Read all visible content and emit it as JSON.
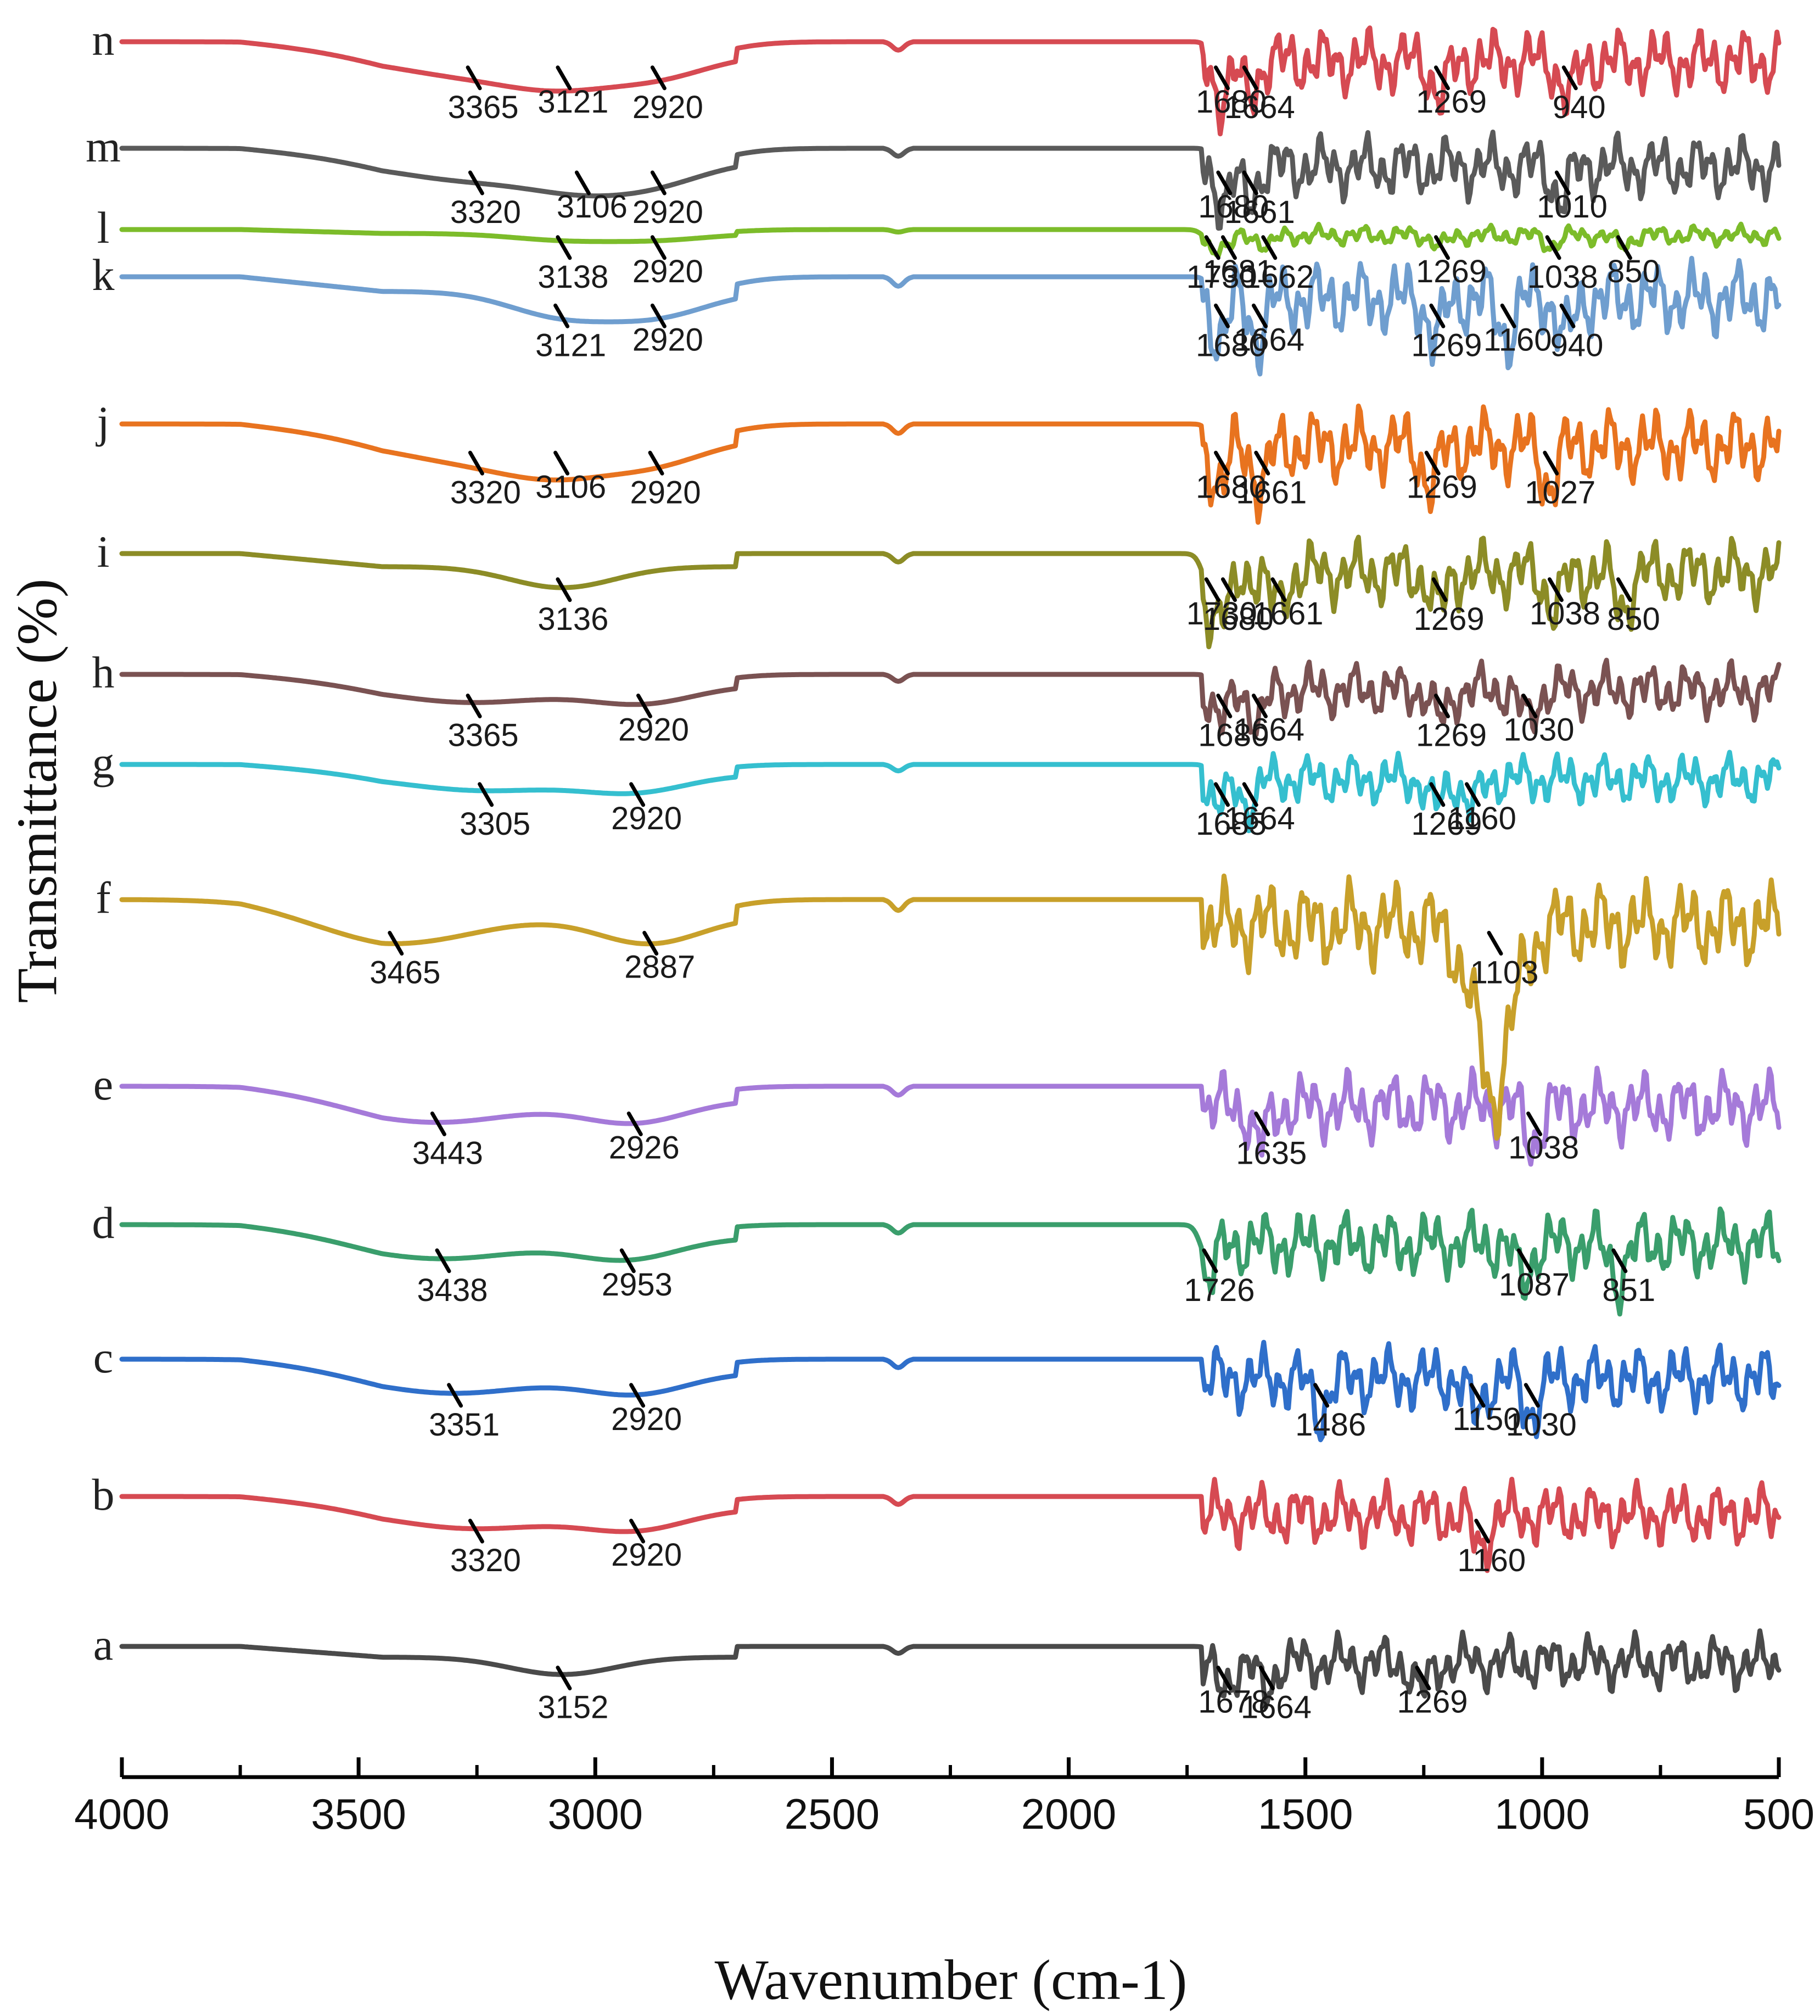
{
  "chart_data": {
    "type": "line",
    "title": "",
    "xlabel": "Wavenumber (cm-1)",
    "ylabel": "Transmittance (%)",
    "xlim": [
      4000,
      500
    ],
    "x_reversed": true,
    "x_ticks": [
      4000,
      3500,
      3000,
      2500,
      2000,
      1500,
      1000,
      500
    ],
    "y_ticks": [],
    "grid": false,
    "legend": "none",
    "series": [
      {
        "name": "a",
        "color": "#4a4a4a",
        "peaks": [
          {
            "label": "3152",
            "x": 3070
          },
          {
            "label": "1678",
            "x": 1675
          },
          {
            "label": "1664",
            "x": 1585
          },
          {
            "label": "1269",
            "x": 1255
          }
        ]
      },
      {
        "name": "b",
        "color": "#d64a52",
        "peaks": [
          {
            "label": "3320",
            "x": 3255
          },
          {
            "label": "2920",
            "x": 2915
          },
          {
            "label": "1160",
            "x": 1130
          }
        ]
      },
      {
        "name": "c",
        "color": "#2f6fca",
        "peaks": [
          {
            "label": "3351",
            "x": 3300
          },
          {
            "label": "2920",
            "x": 2915
          },
          {
            "label": "1486",
            "x": 1470
          },
          {
            "label": "1150",
            "x": 1140
          },
          {
            "label": "1030",
            "x": 1025
          }
        ]
      },
      {
        "name": "d",
        "color": "#3a9e6c",
        "peaks": [
          {
            "label": "3438",
            "x": 3325
          },
          {
            "label": "2953",
            "x": 2935
          },
          {
            "label": "1726",
            "x": 1705
          },
          {
            "label": "1087",
            "x": 1040
          },
          {
            "label": "851",
            "x": 840
          }
        ]
      },
      {
        "name": "e",
        "color": "#a57ad9",
        "peaks": [
          {
            "label": "3443",
            "x": 3335
          },
          {
            "label": "2926",
            "x": 2920
          },
          {
            "label": "1635",
            "x": 1595
          },
          {
            "label": "1038",
            "x": 1020
          }
        ]
      },
      {
        "name": "f",
        "color": "#c8a02a",
        "peaks": [
          {
            "label": "3465",
            "x": 3425
          },
          {
            "label": "2887",
            "x": 2887
          },
          {
            "label": "1103",
            "x": 1103
          }
        ]
      },
      {
        "name": "g",
        "color": "#35bfcf",
        "peaks": [
          {
            "label": "3305",
            "x": 3235
          },
          {
            "label": "2920",
            "x": 2915
          },
          {
            "label": "1685",
            "x": 1680
          },
          {
            "label": "1664",
            "x": 1620
          },
          {
            "label": "1269",
            "x": 1225
          },
          {
            "label": "1160",
            "x": 1150
          }
        ]
      },
      {
        "name": "h",
        "color": "#7a5252",
        "peaks": [
          {
            "label": "3365",
            "x": 3260
          },
          {
            "label": "2920",
            "x": 2900
          },
          {
            "label": "1680",
            "x": 1675
          },
          {
            "label": "1664",
            "x": 1600
          },
          {
            "label": "1269",
            "x": 1215
          },
          {
            "label": "1030",
            "x": 1030
          }
        ]
      },
      {
        "name": "i",
        "color": "#8c8c26",
        "peaks": [
          {
            "label": "3136",
            "x": 3070
          },
          {
            "label": "1730",
            "x": 1700
          },
          {
            "label": "1680",
            "x": 1665
          },
          {
            "label": "1661",
            "x": 1560
          },
          {
            "label": "1269",
            "x": 1220
          },
          {
            "label": "1038",
            "x": 975
          },
          {
            "label": "850",
            "x": 830
          }
        ]
      },
      {
        "name": "j",
        "color": "#e8731f",
        "peaks": [
          {
            "label": "3320",
            "x": 3255
          },
          {
            "label": "3106",
            "x": 3075
          },
          {
            "label": "2920",
            "x": 2875
          },
          {
            "label": "1680",
            "x": 1680
          },
          {
            "label": "1661",
            "x": 1595
          },
          {
            "label": "1269",
            "x": 1235
          },
          {
            "label": "1027",
            "x": 985
          }
        ]
      },
      {
        "name": "k",
        "color": "#6f9ecf",
        "peaks": [
          {
            "label": "3121",
            "x": 3075
          },
          {
            "label": "2920",
            "x": 2870
          },
          {
            "label": "1680",
            "x": 1680
          },
          {
            "label": "1664",
            "x": 1600
          },
          {
            "label": "1269",
            "x": 1225
          },
          {
            "label": "1160",
            "x": 1075
          },
          {
            "label": "940",
            "x": 950
          }
        ]
      },
      {
        "name": "l",
        "color": "#7cbc2a",
        "peaks": [
          {
            "label": "3138",
            "x": 3070
          },
          {
            "label": "2920",
            "x": 2870
          },
          {
            "label": "1730",
            "x": 1700
          },
          {
            "label": "1681",
            "x": 1665
          },
          {
            "label": "1662",
            "x": 1580
          },
          {
            "label": "1269",
            "x": 1215
          },
          {
            "label": "1038",
            "x": 980
          },
          {
            "label": "850",
            "x": 830
          }
        ]
      },
      {
        "name": "m",
        "color": "#5a5a5a",
        "peaks": [
          {
            "label": "3320",
            "x": 3255
          },
          {
            "label": "3106",
            "x": 3030
          },
          {
            "label": "2920",
            "x": 2870
          },
          {
            "label": "1680",
            "x": 1675
          },
          {
            "label": "1661",
            "x": 1620
          },
          {
            "label": "1010",
            "x": 960
          }
        ]
      },
      {
        "name": "n",
        "color": "#d64a52",
        "peaks": [
          {
            "label": "3365",
            "x": 3260
          },
          {
            "label": "3121",
            "x": 3070
          },
          {
            "label": "2920",
            "x": 2870
          },
          {
            "label": "1680",
            "x": 1680
          },
          {
            "label": "1664",
            "x": 1620
          },
          {
            "label": "1269",
            "x": 1215
          },
          {
            "label": "940",
            "x": 945
          }
        ]
      }
    ]
  }
}
